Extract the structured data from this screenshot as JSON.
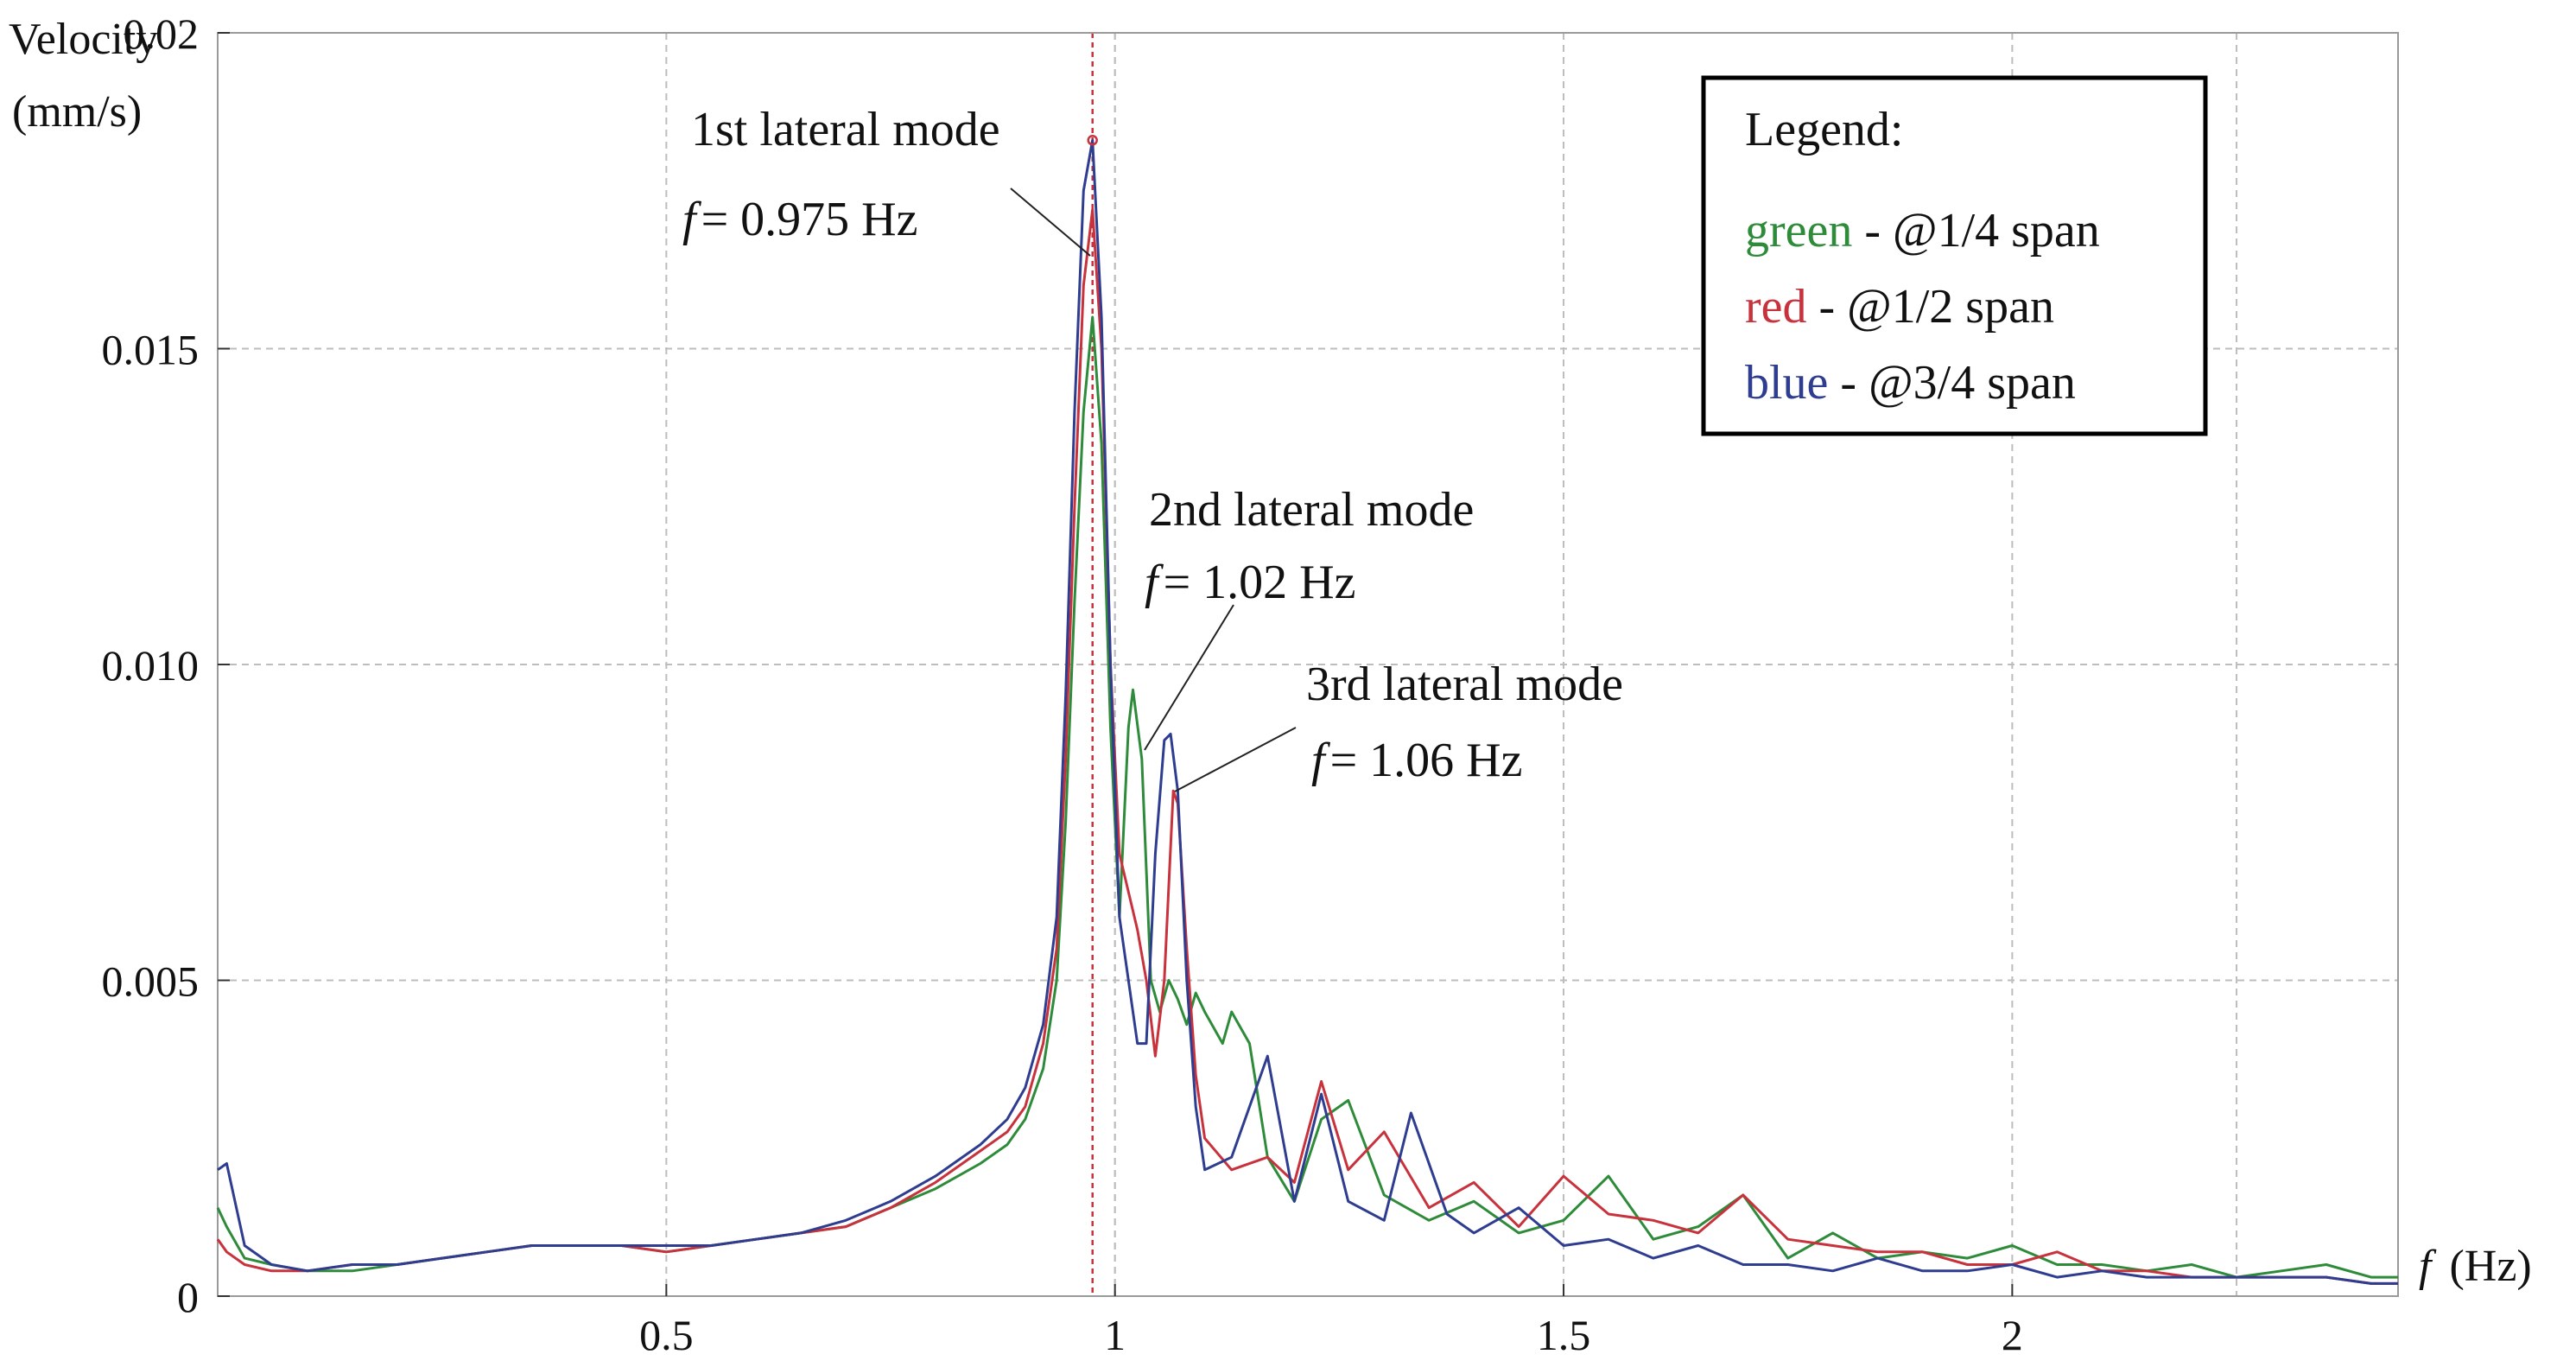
{
  "chart_data": {
    "type": "line",
    "title": "",
    "xlabel": "f (Hz)",
    "xlabel_var": "f",
    "xlabel_unit": "(Hz)",
    "ylabel_line1": "Velocity",
    "ylabel_line2": "(mm/s)",
    "xlim": [
      0,
      2.43
    ],
    "ylim": [
      0,
      0.02
    ],
    "x_ticks": [
      0.5,
      1,
      1.5,
      2
    ],
    "x_tick_labels": [
      "0.5",
      "1",
      "1.5",
      "2"
    ],
    "y_ticks": [
      0,
      0.005,
      0.01,
      0.015,
      0.02
    ],
    "y_tick_labels": [
      "0",
      "0.005",
      "0.010",
      "0.015",
      "0.02"
    ],
    "grid": true,
    "reference_line_x": 0.975,
    "series": [
      {
        "name": "green",
        "color": "#2e8b3a",
        "points": [
          [
            0.0,
            0.0014
          ],
          [
            0.01,
            0.0011
          ],
          [
            0.03,
            0.0006
          ],
          [
            0.06,
            0.0005
          ],
          [
            0.1,
            0.0004
          ],
          [
            0.15,
            0.0004
          ],
          [
            0.2,
            0.0005
          ],
          [
            0.25,
            0.0006
          ],
          [
            0.3,
            0.0007
          ],
          [
            0.35,
            0.0008
          ],
          [
            0.4,
            0.0008
          ],
          [
            0.45,
            0.0008
          ],
          [
            0.5,
            0.0007
          ],
          [
            0.55,
            0.0008
          ],
          [
            0.6,
            0.0009
          ],
          [
            0.65,
            0.001
          ],
          [
            0.7,
            0.0011
          ],
          [
            0.75,
            0.0014
          ],
          [
            0.8,
            0.0017
          ],
          [
            0.85,
            0.0021
          ],
          [
            0.88,
            0.0024
          ],
          [
            0.9,
            0.0028
          ],
          [
            0.92,
            0.0036
          ],
          [
            0.935,
            0.005
          ],
          [
            0.945,
            0.0075
          ],
          [
            0.955,
            0.011
          ],
          [
            0.965,
            0.014
          ],
          [
            0.975,
            0.0155
          ],
          [
            0.985,
            0.0135
          ],
          [
            0.995,
            0.009
          ],
          [
            1.005,
            0.006
          ],
          [
            1.015,
            0.009
          ],
          [
            1.02,
            0.0096
          ],
          [
            1.03,
            0.0085
          ],
          [
            1.04,
            0.005
          ],
          [
            1.05,
            0.0045
          ],
          [
            1.06,
            0.005
          ],
          [
            1.07,
            0.0047
          ],
          [
            1.08,
            0.0043
          ],
          [
            1.09,
            0.0048
          ],
          [
            1.1,
            0.0045
          ],
          [
            1.12,
            0.004
          ],
          [
            1.13,
            0.0045
          ],
          [
            1.15,
            0.004
          ],
          [
            1.17,
            0.0022
          ],
          [
            1.2,
            0.0015
          ],
          [
            1.23,
            0.0028
          ],
          [
            1.26,
            0.0031
          ],
          [
            1.3,
            0.0016
          ],
          [
            1.35,
            0.0012
          ],
          [
            1.4,
            0.0015
          ],
          [
            1.45,
            0.001
          ],
          [
            1.5,
            0.0012
          ],
          [
            1.55,
            0.0019
          ],
          [
            1.6,
            0.0009
          ],
          [
            1.65,
            0.0011
          ],
          [
            1.7,
            0.0016
          ],
          [
            1.75,
            0.0006
          ],
          [
            1.8,
            0.001
          ],
          [
            1.85,
            0.0006
          ],
          [
            1.9,
            0.0007
          ],
          [
            1.95,
            0.0006
          ],
          [
            2.0,
            0.0008
          ],
          [
            2.05,
            0.0005
          ],
          [
            2.1,
            0.0005
          ],
          [
            2.15,
            0.0004
          ],
          [
            2.2,
            0.0005
          ],
          [
            2.25,
            0.0003
          ],
          [
            2.3,
            0.0004
          ],
          [
            2.35,
            0.0005
          ],
          [
            2.4,
            0.0003
          ],
          [
            2.43,
            0.0003
          ]
        ]
      },
      {
        "name": "red",
        "color": "#c8323c",
        "points": [
          [
            0.0,
            0.0009
          ],
          [
            0.01,
            0.0007
          ],
          [
            0.03,
            0.0005
          ],
          [
            0.06,
            0.0004
          ],
          [
            0.1,
            0.0004
          ],
          [
            0.15,
            0.0005
          ],
          [
            0.2,
            0.0005
          ],
          [
            0.25,
            0.0006
          ],
          [
            0.3,
            0.0007
          ],
          [
            0.35,
            0.0008
          ],
          [
            0.4,
            0.0008
          ],
          [
            0.45,
            0.0008
          ],
          [
            0.5,
            0.0007
          ],
          [
            0.55,
            0.0008
          ],
          [
            0.6,
            0.0009
          ],
          [
            0.65,
            0.001
          ],
          [
            0.7,
            0.0011
          ],
          [
            0.75,
            0.0014
          ],
          [
            0.8,
            0.0018
          ],
          [
            0.85,
            0.0023
          ],
          [
            0.88,
            0.0026
          ],
          [
            0.9,
            0.003
          ],
          [
            0.92,
            0.004
          ],
          [
            0.935,
            0.0055
          ],
          [
            0.945,
            0.0085
          ],
          [
            0.955,
            0.0125
          ],
          [
            0.965,
            0.016
          ],
          [
            0.975,
            0.0172
          ],
          [
            0.985,
            0.015
          ],
          [
            0.995,
            0.01
          ],
          [
            1.005,
            0.007
          ],
          [
            1.015,
            0.0064
          ],
          [
            1.025,
            0.0058
          ],
          [
            1.035,
            0.005
          ],
          [
            1.045,
            0.0038
          ],
          [
            1.055,
            0.005
          ],
          [
            1.065,
            0.008
          ],
          [
            1.07,
            0.0078
          ],
          [
            1.08,
            0.0055
          ],
          [
            1.09,
            0.0035
          ],
          [
            1.1,
            0.0025
          ],
          [
            1.13,
            0.002
          ],
          [
            1.17,
            0.0022
          ],
          [
            1.2,
            0.0018
          ],
          [
            1.23,
            0.0034
          ],
          [
            1.26,
            0.002
          ],
          [
            1.3,
            0.0026
          ],
          [
            1.35,
            0.0014
          ],
          [
            1.4,
            0.0018
          ],
          [
            1.45,
            0.0011
          ],
          [
            1.5,
            0.0019
          ],
          [
            1.55,
            0.0013
          ],
          [
            1.6,
            0.0012
          ],
          [
            1.65,
            0.001
          ],
          [
            1.7,
            0.0016
          ],
          [
            1.75,
            0.0009
          ],
          [
            1.8,
            0.0008
          ],
          [
            1.85,
            0.0007
          ],
          [
            1.9,
            0.0007
          ],
          [
            1.95,
            0.0005
          ],
          [
            2.0,
            0.0005
          ],
          [
            2.05,
            0.0007
          ],
          [
            2.1,
            0.0004
          ],
          [
            2.15,
            0.0004
          ],
          [
            2.2,
            0.0003
          ],
          [
            2.25,
            0.0003
          ],
          [
            2.3,
            0.0003
          ],
          [
            2.35,
            0.0003
          ],
          [
            2.4,
            0.0002
          ],
          [
            2.43,
            0.0002
          ]
        ]
      },
      {
        "name": "blue",
        "color": "#2e3d8f",
        "points": [
          [
            0.0,
            0.002
          ],
          [
            0.01,
            0.0021
          ],
          [
            0.03,
            0.0008
          ],
          [
            0.06,
            0.0005
          ],
          [
            0.1,
            0.0004
          ],
          [
            0.15,
            0.0005
          ],
          [
            0.2,
            0.0005
          ],
          [
            0.25,
            0.0006
          ],
          [
            0.3,
            0.0007
          ],
          [
            0.35,
            0.0008
          ],
          [
            0.4,
            0.0008
          ],
          [
            0.45,
            0.0008
          ],
          [
            0.5,
            0.0008
          ],
          [
            0.55,
            0.0008
          ],
          [
            0.6,
            0.0009
          ],
          [
            0.65,
            0.001
          ],
          [
            0.7,
            0.0012
          ],
          [
            0.75,
            0.0015
          ],
          [
            0.8,
            0.0019
          ],
          [
            0.85,
            0.0024
          ],
          [
            0.88,
            0.0028
          ],
          [
            0.9,
            0.0033
          ],
          [
            0.92,
            0.0043
          ],
          [
            0.935,
            0.006
          ],
          [
            0.945,
            0.0095
          ],
          [
            0.955,
            0.014
          ],
          [
            0.965,
            0.0175
          ],
          [
            0.975,
            0.0183
          ],
          [
            0.985,
            0.0155
          ],
          [
            0.995,
            0.01
          ],
          [
            1.005,
            0.006
          ],
          [
            1.015,
            0.005
          ],
          [
            1.025,
            0.004
          ],
          [
            1.035,
            0.004
          ],
          [
            1.045,
            0.007
          ],
          [
            1.055,
            0.0088
          ],
          [
            1.062,
            0.0089
          ],
          [
            1.07,
            0.008
          ],
          [
            1.08,
            0.005
          ],
          [
            1.09,
            0.003
          ],
          [
            1.1,
            0.002
          ],
          [
            1.13,
            0.0022
          ],
          [
            1.17,
            0.0038
          ],
          [
            1.2,
            0.0015
          ],
          [
            1.23,
            0.0032
          ],
          [
            1.26,
            0.0015
          ],
          [
            1.3,
            0.0012
          ],
          [
            1.33,
            0.0029
          ],
          [
            1.37,
            0.0013
          ],
          [
            1.4,
            0.001
          ],
          [
            1.45,
            0.0014
          ],
          [
            1.5,
            0.0008
          ],
          [
            1.55,
            0.0009
          ],
          [
            1.6,
            0.0006
          ],
          [
            1.65,
            0.0008
          ],
          [
            1.7,
            0.0005
          ],
          [
            1.75,
            0.0005
          ],
          [
            1.8,
            0.0004
          ],
          [
            1.85,
            0.0006
          ],
          [
            1.9,
            0.0004
          ],
          [
            1.95,
            0.0004
          ],
          [
            2.0,
            0.0005
          ],
          [
            2.05,
            0.0003
          ],
          [
            2.1,
            0.0004
          ],
          [
            2.15,
            0.0003
          ],
          [
            2.2,
            0.0003
          ],
          [
            2.25,
            0.0003
          ],
          [
            2.3,
            0.0003
          ],
          [
            2.35,
            0.0003
          ],
          [
            2.4,
            0.0002
          ],
          [
            2.43,
            0.0002
          ]
        ]
      }
    ],
    "annotations": [
      {
        "id": "mode1",
        "title": "1st lateral mode",
        "freq_text": "= 0.975 Hz",
        "var": "f",
        "peak": [
          0.975,
          0.0183
        ]
      },
      {
        "id": "mode2",
        "title": "2nd lateral mode",
        "freq_text": "= 1.02 Hz",
        "var": "f",
        "peak": [
          1.022,
          0.0097
        ]
      },
      {
        "id": "mode3",
        "title": "3rd lateral mode",
        "freq_text": "= 1.06 Hz",
        "var": "f",
        "peak": [
          1.062,
          0.0089
        ]
      }
    ],
    "legend": {
      "title": "Legend:",
      "placement": "top-right",
      "entries": [
        {
          "color_word": "green",
          "desc": " - @1/4 span",
          "color": "#2e8b3a"
        },
        {
          "color_word": "red",
          "desc": " - @1/2 span",
          "color": "#c8323c"
        },
        {
          "color_word": "blue",
          "desc": " - @3/4 span",
          "color": "#2e3d8f"
        }
      ]
    }
  }
}
